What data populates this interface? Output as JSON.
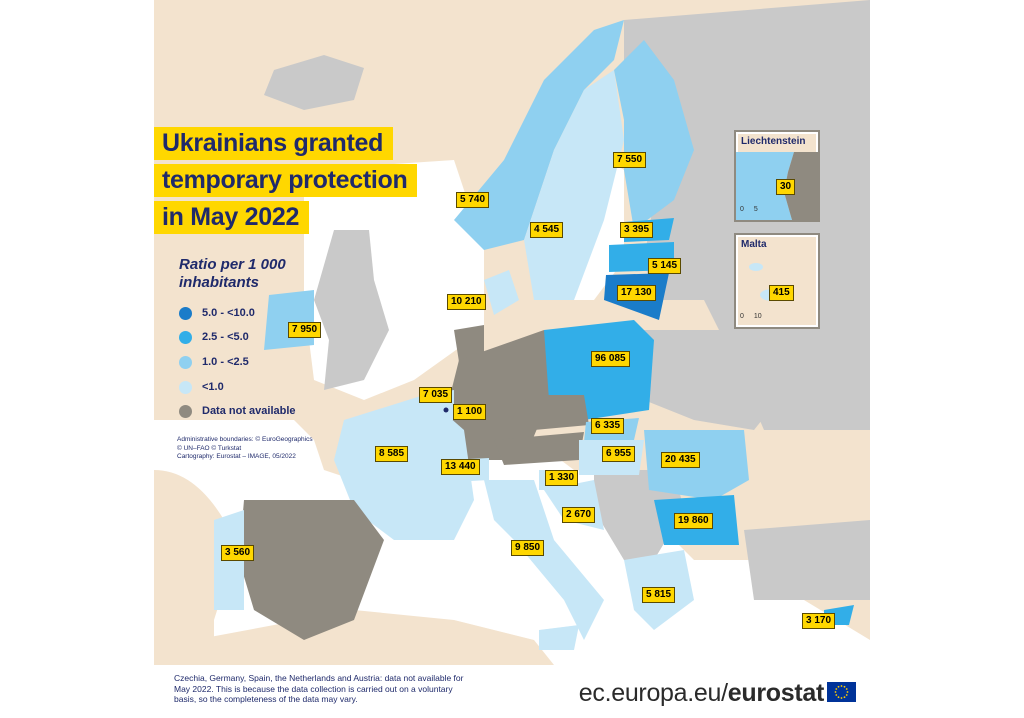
{
  "title_lines": [
    "Ukrainians granted",
    "temporary protection",
    "in May 2022"
  ],
  "legend": {
    "title_lines": [
      "Ratio per 1 000",
      "inhabitants"
    ],
    "items": [
      {
        "label": "5.0 - <10.0",
        "color": "#1a7cc9"
      },
      {
        "label": "2.5 - <5.0",
        "color": "#32aee8"
      },
      {
        "label": "1.0 - <2.5",
        "color": "#8fd0f0"
      },
      {
        "label": "<1.0",
        "color": "#c7e7f7"
      },
      {
        "label": "Data not available",
        "color": "#8f8a80"
      }
    ]
  },
  "credits": [
    "Administrative boundaries: © EuroGeographics",
    "© UN–FAO © Turkstat",
    "Cartography: Eurostat – IMAGE, 05/2022"
  ],
  "colors": {
    "background": "#f3e3ce",
    "non_eu_land": "#c9c9c9",
    "sea": "#ffffff",
    "label_bg": "#ffd700",
    "title_text": "#1f2a6b"
  },
  "countries": [
    {
      "name": "Norway",
      "value": "5 740"
    },
    {
      "name": "Sweden",
      "value": "4 545"
    },
    {
      "name": "Finland",
      "value": "7 550"
    },
    {
      "name": "Estonia",
      "value": "3 395"
    },
    {
      "name": "Latvia",
      "value": "5 145"
    },
    {
      "name": "Lithuania",
      "value": "17 130"
    },
    {
      "name": "Denmark",
      "value": "10 210"
    },
    {
      "name": "Ireland",
      "value": "7 950"
    },
    {
      "name": "Poland",
      "value": "96 085"
    },
    {
      "name": "Belgium",
      "value": "7 035"
    },
    {
      "name": "Luxembourg",
      "value": "1 100"
    },
    {
      "name": "France",
      "value": "8 585"
    },
    {
      "name": "Switzerland",
      "value": "13 440"
    },
    {
      "name": "Slovakia",
      "value": "6 335"
    },
    {
      "name": "Hungary",
      "value": "6 955"
    },
    {
      "name": "Romania",
      "value": "20 435"
    },
    {
      "name": "Slovenia",
      "value": "1 330"
    },
    {
      "name": "Croatia",
      "value": "2 670"
    },
    {
      "name": "Bulgaria",
      "value": "19 860"
    },
    {
      "name": "Portugal",
      "value": "3 560"
    },
    {
      "name": "Italy",
      "value": "9 850"
    },
    {
      "name": "Greece",
      "value": "5 815"
    },
    {
      "name": "Cyprus",
      "value": "3 170"
    }
  ],
  "insets": {
    "liechtenstein": {
      "title": "Liechtenstein",
      "value": "30",
      "scale": [
        "0",
        "5"
      ]
    },
    "malta": {
      "title": "Malta",
      "value": "415",
      "scale": [
        "0",
        "10"
      ]
    }
  },
  "footnote": "Czechia, Germany, Spain, the Netherlands and Austria: data not available for May 2022. This is because the data collection is carried out on a voluntary basis, so the completeness of the data may vary.",
  "brand": {
    "prefix": "ec.europa.eu/",
    "name": "eurostat"
  }
}
